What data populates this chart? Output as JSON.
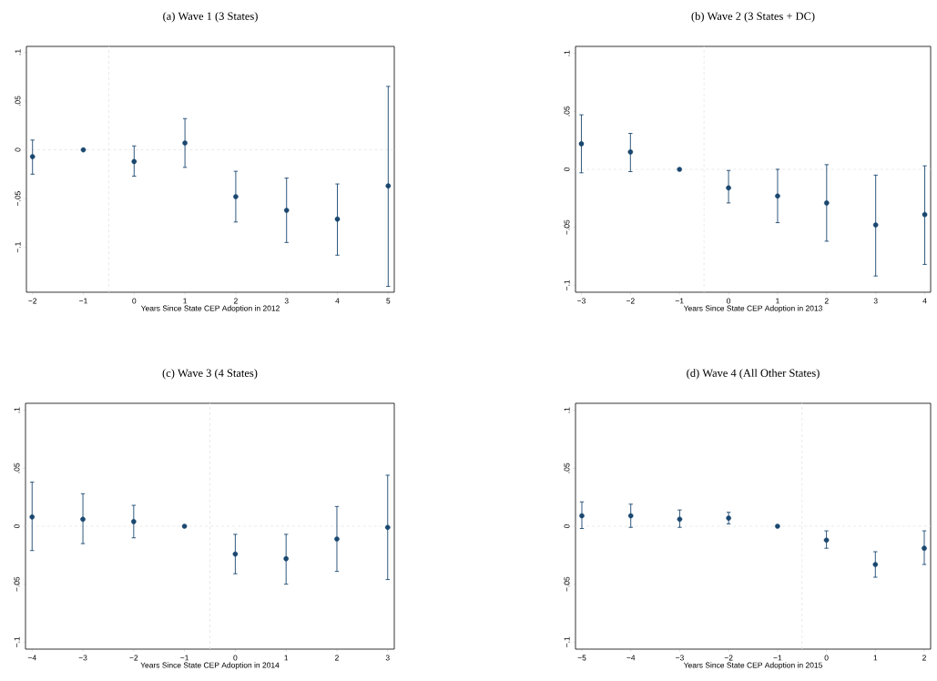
{
  "chart_data": [
    {
      "type": "scatter",
      "title": "(a) Wave 1 (3 States)",
      "xlabel": "Years Since State CEP Adoption in 2012",
      "color": "#1a476f",
      "marker": "circle",
      "x": [
        -2,
        -1,
        0,
        1,
        2,
        3,
        4,
        5
      ],
      "values": [
        -0.007,
        0,
        -0.012,
        0.007,
        -0.048,
        -0.062,
        -0.071,
        -0.037
      ],
      "errors": [
        [
          -0.025,
          0.01
        ],
        null,
        [
          -0.027,
          0.004
        ],
        [
          -0.018,
          0.032
        ],
        [
          -0.074,
          -0.022
        ],
        [
          -0.095,
          -0.029
        ],
        [
          -0.108,
          -0.035
        ],
        [
          -0.14,
          0.065
        ]
      ],
      "xlim": [
        -2.12,
        5.12
      ],
      "ylim": [
        -0.146,
        0.106
      ],
      "xticks": [
        {
          "value": -2,
          "label": "−2"
        },
        {
          "value": -1,
          "label": "−1"
        },
        0,
        1,
        2,
        3,
        4,
        5
      ],
      "yticks": [
        {
          "value": -0.1,
          "label": "−.1"
        },
        {
          "value": -0.05,
          "label": "−.05"
        },
        0,
        {
          "value": 0.05,
          "label": ".05"
        },
        {
          "value": 0.1,
          "label": ".1"
        }
      ],
      "ref_lines": [
        {
          "axis": "x",
          "value": -0.5,
          "color": "#e3e3e3",
          "line_style": "dashed"
        },
        {
          "axis": "y",
          "value": 0,
          "color": "#e3e3e3",
          "line_style": "dashed"
        }
      ]
    },
    {
      "type": "scatter",
      "title": "(b) Wave 2 (3 States + DC)",
      "xlabel": "Years Since State CEP Adoption in 2013",
      "color": "#1a476f",
      "marker": "circle",
      "x": [
        -3,
        -2,
        -1,
        0,
        1,
        2,
        3,
        4
      ],
      "values": [
        0.022,
        0.015,
        0,
        -0.016,
        -0.023,
        -0.029,
        -0.048,
        -0.039
      ],
      "errors": [
        [
          -0.003,
          0.047
        ],
        [
          -0.002,
          0.031
        ],
        null,
        [
          -0.029,
          -0.001
        ],
        [
          -0.046,
          0.0
        ],
        [
          -0.062,
          0.004
        ],
        [
          -0.092,
          -0.005
        ],
        [
          -0.082,
          0.003
        ]
      ],
      "xlim": [
        -3.12,
        4.12
      ],
      "ylim": [
        -0.106,
        0.106
      ],
      "xticks": [
        {
          "value": -3,
          "label": "−3"
        },
        {
          "value": -2,
          "label": "−2"
        },
        {
          "value": -1,
          "label": "−1"
        },
        0,
        1,
        2,
        3,
        4
      ],
      "yticks": [
        {
          "value": -0.1,
          "label": "−.1"
        },
        {
          "value": -0.05,
          "label": "−.05"
        },
        0,
        {
          "value": 0.05,
          "label": ".05"
        },
        {
          "value": 0.1,
          "label": ".1"
        }
      ],
      "ref_lines": [
        {
          "axis": "x",
          "value": -0.5,
          "color": "#e3e3e3",
          "line_style": "dashed"
        },
        {
          "axis": "y",
          "value": 0,
          "color": "#e3e3e3",
          "line_style": "dashed"
        }
      ]
    },
    {
      "type": "scatter",
      "title": "(c) Wave 3 (4 States)",
      "xlabel": "Years Since State CEP Adoption in 2014",
      "color": "#1a476f",
      "marker": "circle",
      "x": [
        -4,
        -3,
        -2,
        -1,
        0,
        1,
        2,
        3
      ],
      "values": [
        0.008,
        0.006,
        0.004,
        0,
        -0.024,
        -0.028,
        -0.011,
        -0.001
      ],
      "errors": [
        [
          -0.021,
          0.038
        ],
        [
          -0.015,
          0.028
        ],
        [
          -0.01,
          0.018
        ],
        null,
        [
          -0.041,
          -0.007
        ],
        [
          -0.05,
          -0.007
        ],
        [
          -0.039,
          0.017
        ],
        [
          -0.046,
          0.044
        ]
      ],
      "xlim": [
        -4.13,
        3.13
      ],
      "ylim": [
        -0.106,
        0.106
      ],
      "xticks": [
        {
          "value": -4,
          "label": "−4"
        },
        {
          "value": -3,
          "label": "−3"
        },
        {
          "value": -2,
          "label": "−2"
        },
        {
          "value": -1,
          "label": "−1"
        },
        0,
        1,
        2,
        3
      ],
      "yticks": [
        {
          "value": -0.1,
          "label": "−.1"
        },
        {
          "value": -0.05,
          "label": "−.05"
        },
        0,
        {
          "value": 0.05,
          "label": ".05"
        },
        {
          "value": 0.1,
          "label": ".1"
        }
      ],
      "ref_lines": [
        {
          "axis": "x",
          "value": -0.5,
          "color": "#e3e3e3",
          "line_style": "dashed"
        },
        {
          "axis": "y",
          "value": 0,
          "color": "#e3e3e3",
          "line_style": "dashed"
        }
      ]
    },
    {
      "type": "scatter",
      "title": "(d) Wave 4 (All Other States)",
      "xlabel": "Years Since State CEP Adoption in 2015",
      "color": "#1a476f",
      "marker": "circle",
      "x": [
        -5,
        -4,
        -3,
        -2,
        -1,
        0,
        1,
        2
      ],
      "values": [
        0.009,
        0.009,
        0.006,
        0.007,
        0,
        -0.012,
        -0.033,
        -0.019
      ],
      "errors": [
        [
          -0.002,
          0.021
        ],
        [
          -0.001,
          0.019
        ],
        [
          -0.001,
          0.014
        ],
        [
          0.002,
          0.012
        ],
        null,
        [
          -0.019,
          -0.004
        ],
        [
          -0.044,
          -0.022
        ],
        [
          -0.033,
          -0.004
        ]
      ],
      "xlim": [
        -5.13,
        2.13
      ],
      "ylim": [
        -0.106,
        0.106
      ],
      "xticks": [
        {
          "value": -5,
          "label": "−5"
        },
        {
          "value": -4,
          "label": "−4"
        },
        {
          "value": -3,
          "label": "−3"
        },
        {
          "value": -2,
          "label": "−2"
        },
        {
          "value": -1,
          "label": "−1"
        },
        0,
        1,
        2
      ],
      "yticks": [
        {
          "value": -0.1,
          "label": "−.1"
        },
        {
          "value": -0.05,
          "label": "−.05"
        },
        0,
        {
          "value": 0.05,
          "label": ".05"
        },
        {
          "value": 0.1,
          "label": ".1"
        }
      ],
      "ref_lines": [
        {
          "axis": "x",
          "value": -0.5,
          "color": "#e3e3e3",
          "line_style": "dashed"
        },
        {
          "axis": "y",
          "value": 0,
          "color": "#e3e3e3",
          "line_style": "dashed"
        }
      ]
    }
  ]
}
